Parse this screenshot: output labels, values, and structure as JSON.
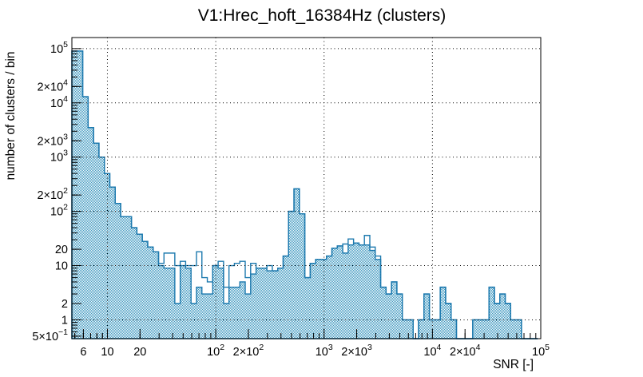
{
  "window": {
    "background": "#ffffff"
  },
  "chart_data": {
    "type": "histogram",
    "title": "V1:Hrec_hoft_16384Hz (clusters)",
    "xlabel": "SNR [-]",
    "ylabel": "number of clusters / bin",
    "x_scale": "log",
    "y_scale": "log",
    "x_range": [
      4.7,
      100000
    ],
    "y_range": [
      0.45,
      160000
    ],
    "grid": "dotted lines at decade ticks, drawn over histogram",
    "legend": "none",
    "x_ticks": [
      {
        "v": 6,
        "m": "6"
      },
      {
        "v": 10,
        "m": "10"
      },
      {
        "v": 20,
        "m": "20"
      },
      {
        "v": 100,
        "m": "10",
        "e": "2"
      },
      {
        "v": 200,
        "m": "2×10",
        "e": "2"
      },
      {
        "v": 1000,
        "m": "10",
        "e": "3"
      },
      {
        "v": 2000,
        "m": "2×10",
        "e": "3"
      },
      {
        "v": 10000,
        "m": "10",
        "e": "4"
      },
      {
        "v": 20000,
        "m": "2×10",
        "e": "4"
      },
      {
        "v": 100000,
        "m": "10",
        "e": "5"
      }
    ],
    "y_ticks": [
      {
        "v": 0.5,
        "m": "5×10",
        "e": "−1"
      },
      {
        "v": 1,
        "m": "1"
      },
      {
        "v": 2,
        "m": "2"
      },
      {
        "v": 10,
        "m": "10"
      },
      {
        "v": 20,
        "m": "20"
      },
      {
        "v": 100,
        "m": "10",
        "e": "2"
      },
      {
        "v": 200,
        "m": "2×10",
        "e": "2"
      },
      {
        "v": 1000,
        "m": "10",
        "e": "3"
      },
      {
        "v": 2000,
        "m": "2×10",
        "e": "3"
      },
      {
        "v": 10000,
        "m": "10",
        "e": "4"
      },
      {
        "v": 20000,
        "m": "2×10",
        "e": "4"
      },
      {
        "v": 100000,
        "m": "10",
        "e": "5"
      }
    ],
    "x_grid_decades": [
      10,
      100,
      1000,
      10000
    ],
    "y_grid_decades": [
      1,
      10,
      100,
      1000,
      10000,
      100000
    ],
    "bins": {
      "start": 4.7,
      "per_decade": 20,
      "count": 86
    },
    "series": [
      {
        "name": "clusters-filled",
        "style": "checker-fill",
        "values": [
          90000,
          90000,
          13000,
          3500,
          1800,
          1000,
          500,
          280,
          140,
          80,
          80,
          50,
          38,
          28,
          22,
          18,
          10,
          9,
          9,
          2,
          10,
          9,
          2,
          4,
          3,
          3,
          10,
          9,
          2,
          4,
          4,
          5,
          3,
          7,
          9,
          9,
          8,
          8,
          9,
          15,
          100,
          260,
          90,
          6,
          11,
          13,
          13,
          15,
          21,
          23,
          17,
          24,
          26,
          24,
          24,
          19,
          13,
          4,
          3,
          5,
          3,
          1,
          1,
          0,
          1,
          3,
          1,
          1,
          4,
          2,
          1,
          0,
          0,
          0,
          1,
          1,
          1,
          4,
          2,
          3,
          2,
          1,
          1,
          0,
          0,
          0
        ]
      },
      {
        "name": "clusters-outline",
        "style": "line",
        "values": [
          90000,
          90000,
          13000,
          3500,
          1800,
          1000,
          500,
          280,
          140,
          80,
          80,
          50,
          38,
          28,
          22,
          18,
          11,
          17,
          17,
          10,
          12,
          10,
          10,
          18,
          6,
          5,
          10,
          12,
          4,
          10,
          11,
          12,
          6,
          11,
          9,
          9,
          10,
          8,
          9,
          15,
          100,
          260,
          90,
          6,
          11,
          13,
          13,
          15,
          21,
          23,
          25,
          31,
          26,
          24,
          36,
          22,
          15,
          4,
          3,
          5,
          3,
          1,
          1,
          0,
          1,
          3,
          1,
          1,
          4,
          2,
          1,
          0,
          0,
          0,
          1,
          1,
          1,
          4,
          2,
          3,
          2,
          1,
          1,
          0,
          0,
          0
        ]
      }
    ],
    "colors": {
      "hist_line": "#1c79ae",
      "hist_fill": "#3e98c0",
      "frame": "#000000",
      "grid": "#000000",
      "background": "#ffffff"
    }
  }
}
